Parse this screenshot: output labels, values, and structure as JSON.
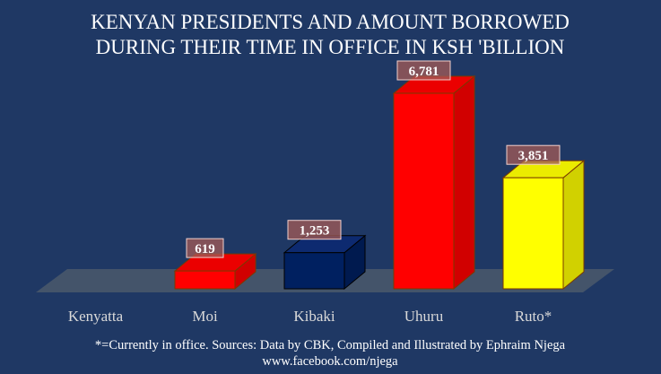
{
  "chart_data": {
    "type": "bar",
    "title_line1": "KENYAN PRESIDENTS AND AMOUNT BORROWED",
    "title_line2": "DURING THEIR TIME IN OFFICE IN KSH 'BILLION",
    "categories": [
      "Kenyatta",
      "Moi",
      "Kibaki",
      "Uhuru",
      "Ruto*"
    ],
    "values": [
      0,
      619,
      1253,
      6781,
      3851
    ],
    "data_labels": [
      "",
      "619",
      "1,253",
      "6,781",
      "3,851"
    ],
    "colors": [
      "#ff0000",
      "#ff0000",
      "#002060",
      "#ff0000",
      "#ffff00"
    ],
    "ylim": [
      0,
      7000
    ],
    "grid": false,
    "legend": "none"
  },
  "footer": {
    "line1": "*=Currently in office. Sources: Data by CBK, Compiled and Illustrated by Ephraim Njega",
    "line2": "www.facebook.com/njega"
  }
}
